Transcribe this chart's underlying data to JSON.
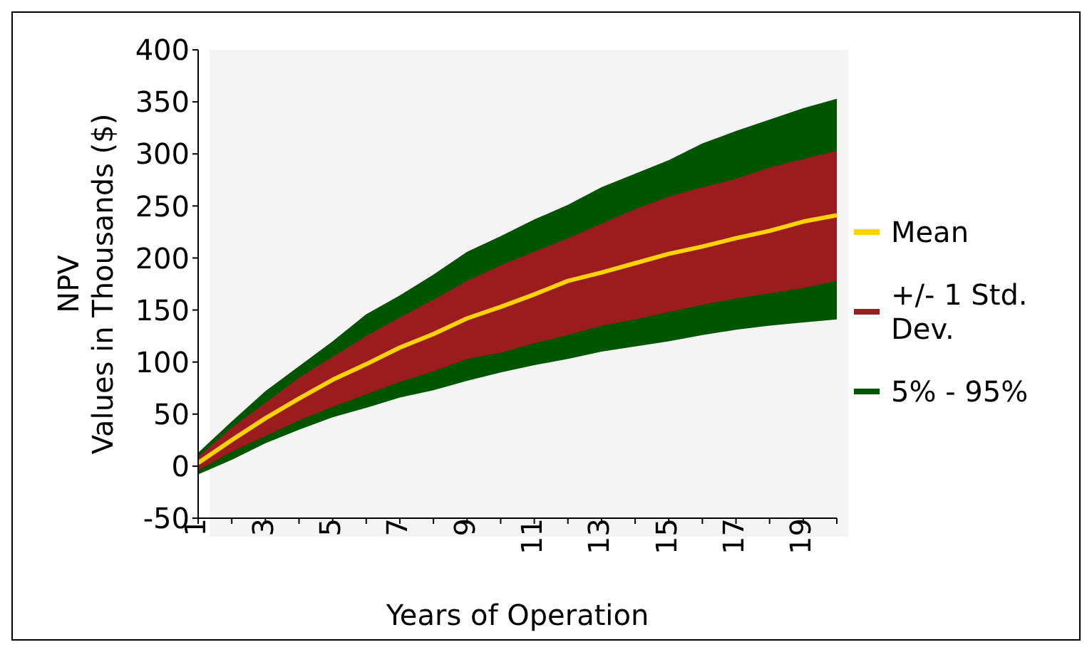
{
  "chart_data": {
    "type": "line",
    "xlabel": "Years of Operation",
    "ylabel": "NPV\nValues in Thousands ($)",
    "categories": [
      "1",
      null,
      "3",
      null,
      "5",
      null,
      "7",
      null,
      "9",
      null,
      "11",
      null,
      "13",
      null,
      "15",
      null,
      "17",
      null,
      "19",
      null
    ],
    "series": [
      {
        "name": "Mean",
        "color": "#ffd200",
        "values": [
          3,
          25,
          46,
          65,
          83,
          98,
          114,
          127,
          142,
          153,
          165,
          178,
          186,
          195,
          204,
          211,
          219,
          226,
          235,
          241
        ]
      },
      {
        "name": "+/- 1 Std. Dev.",
        "color": "#9b1c1f",
        "values": [
          null,
          null,
          null,
          null,
          null,
          null,
          null,
          null,
          null,
          null,
          null,
          null,
          null,
          null,
          null,
          null,
          null,
          null,
          null,
          null
        ],
        "lower": [
          -4,
          14,
          29,
          44,
          57,
          69,
          81,
          91,
          103,
          109,
          118,
          126,
          135,
          141,
          148,
          155,
          161,
          166,
          171,
          178
        ],
        "upper": [
          9,
          37,
          61,
          85,
          105,
          125,
          143,
          160,
          178,
          193,
          206,
          219,
          233,
          247,
          259,
          268,
          276,
          287,
          295,
          303
        ]
      },
      {
        "name": "5% - 95%",
        "color": "#005500",
        "values": [
          null,
          null,
          null,
          null,
          null,
          null,
          null,
          null,
          null,
          null,
          null,
          null,
          null,
          null,
          null,
          null,
          null,
          null,
          null,
          null
        ],
        "lower": [
          -8,
          6,
          22,
          35,
          47,
          56,
          66,
          73,
          82,
          90,
          97,
          103,
          110,
          115,
          120,
          126,
          131,
          135,
          138,
          141
        ],
        "upper": [
          13,
          43,
          72,
          96,
          120,
          146,
          164,
          184,
          206,
          221,
          237,
          251,
          268,
          281,
          294,
          310,
          322,
          333,
          344,
          353
        ]
      }
    ],
    "ylim": [
      -50,
      400
    ],
    "yticks": [
      -50,
      0,
      50,
      100,
      150,
      200,
      250,
      300,
      350,
      400
    ],
    "grid": false,
    "legend": "right",
    "marker": "none",
    "line_style": "solid"
  }
}
